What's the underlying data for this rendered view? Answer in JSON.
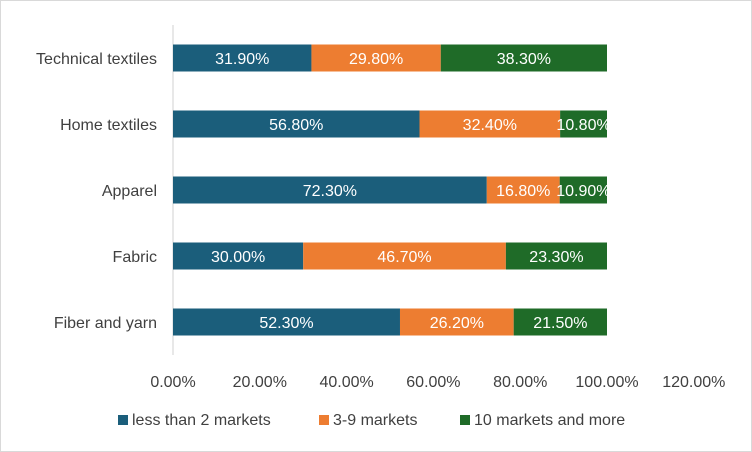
{
  "chart_data": {
    "type": "bar",
    "orientation": "horizontal",
    "stacked": true,
    "categories": [
      "Technical textiles",
      "Home textiles",
      "Apparel",
      "Fabric",
      "Fiber and yarn"
    ],
    "series": [
      {
        "name": "less than 2 markets",
        "color": "#1b5e7b",
        "values": [
          31.9,
          56.8,
          72.3,
          30.0,
          52.3
        ],
        "labels": [
          "31.90%",
          "56.80%",
          "72.30%",
          "30.00%",
          "52.30%"
        ]
      },
      {
        "name": "3-9 markets",
        "color": "#ed7d31",
        "values": [
          29.8,
          32.4,
          16.8,
          46.7,
          26.2
        ],
        "labels": [
          "29.80%",
          "32.40%",
          "16.80%",
          "46.70%",
          "26.20%"
        ]
      },
      {
        "name": "10 markets and more",
        "color": "#1f6b28",
        "values": [
          38.3,
          10.8,
          10.9,
          23.3,
          21.5
        ],
        "labels": [
          "38.30%",
          "10.80%",
          "10.90%",
          "23.30%",
          "21.50%"
        ]
      }
    ],
    "xlim": [
      0,
      120
    ],
    "x_ticks": [
      "0.00%",
      "20.00%",
      "40.00%",
      "60.00%",
      "80.00%",
      "100.00%",
      "120.00%"
    ],
    "grid": false,
    "legend_position": "bottom"
  }
}
